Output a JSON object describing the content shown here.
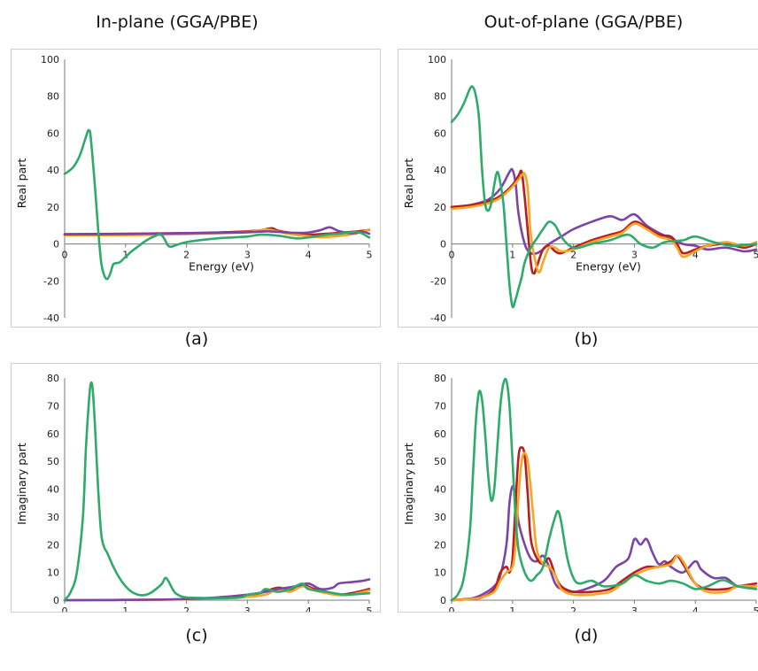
{
  "column_titles": {
    "left": "In-plane (GGA/PBE)",
    "right": "Out-of-plane (GGA/PBE)"
  },
  "colors": {
    "green": "#2eab6b",
    "purple": "#7b44a8",
    "red": "#b81d22",
    "orange": "#f5a623"
  },
  "chart_data": [
    {
      "id": "a",
      "caption": "(a)",
      "type": "line",
      "xlabel": "Energy (eV)",
      "ylabel": "Real part",
      "xlim": [
        0,
        5
      ],
      "ylim": [
        -40,
        100
      ],
      "xticks": [
        0,
        1,
        2,
        3,
        4,
        5
      ],
      "yticks": [
        -40,
        -20,
        0,
        20,
        40,
        60,
        80,
        100
      ],
      "grid": false,
      "series": [
        {
          "color": "#b81d22",
          "x": [
            0,
            0.5,
            1,
            1.5,
            2,
            2.5,
            3,
            3.2,
            3.4,
            3.5,
            3.7,
            4,
            4.3,
            4.5,
            4.8,
            5
          ],
          "y": [
            5.3,
            5.4,
            5.5,
            5.7,
            5.9,
            6.2,
            6.8,
            7.3,
            8.5,
            7.2,
            6,
            5,
            5.5,
            6,
            6.8,
            7.6
          ]
        },
        {
          "color": "#f5a623",
          "x": [
            0,
            0.5,
            1,
            1.5,
            2,
            2.5,
            3,
            3.3,
            3.5,
            3.7,
            4,
            4.2,
            4.5,
            4.8,
            5
          ],
          "y": [
            4.6,
            4.7,
            4.8,
            5,
            5.3,
            5.8,
            6.4,
            7.8,
            6.8,
            5.3,
            4.2,
            3.7,
            4.3,
            5.8,
            7.8
          ]
        },
        {
          "color": "#7b44a8",
          "x": [
            0,
            0.5,
            1,
            1.5,
            2,
            2.5,
            3,
            3.3,
            3.5,
            3.8,
            4,
            4.2,
            4.35,
            4.5,
            4.7,
            4.9,
            5
          ],
          "y": [
            5.2,
            5.3,
            5.4,
            5.6,
            5.8,
            6,
            6.3,
            6.8,
            6.5,
            6,
            6.2,
            7.5,
            9,
            7,
            5.8,
            6.5,
            5.5
          ]
        },
        {
          "color": "#2eab6b",
          "x": [
            0,
            0.05,
            0.15,
            0.25,
            0.33,
            0.38,
            0.4,
            0.42,
            0.45,
            0.5,
            0.55,
            0.6,
            0.65,
            0.7,
            0.75,
            0.8,
            0.9,
            1,
            1.1,
            1.2,
            1.3,
            1.4,
            1.5,
            1.55,
            1.6,
            1.65,
            1.7,
            1.75,
            1.8,
            2,
            2.5,
            3,
            3.2,
            3.5,
            3.8,
            4,
            4.3,
            4.5,
            4.8,
            5
          ],
          "y": [
            38,
            39,
            42,
            48,
            56,
            61,
            61.5,
            60,
            50,
            30,
            8,
            -10,
            -17,
            -19,
            -16,
            -11,
            -10,
            -7,
            -4,
            -1.5,
            1,
            3,
            4.5,
            5.2,
            4.5,
            2,
            -1,
            -1.5,
            -1,
            1,
            3,
            4,
            5,
            4.5,
            3,
            3.5,
            5,
            5.5,
            6.5,
            3.5
          ]
        }
      ]
    },
    {
      "id": "b",
      "caption": "(b)",
      "type": "line",
      "xlabel": "Energy (eV)",
      "ylabel": "Real part",
      "xlim": [
        0,
        5
      ],
      "ylim": [
        -40,
        100
      ],
      "xticks": [
        0,
        1,
        2,
        3,
        4,
        5
      ],
      "yticks": [
        -40,
        -20,
        0,
        20,
        40,
        60,
        80,
        100
      ],
      "grid": false,
      "series": [
        {
          "color": "#7b44a8",
          "x": [
            0,
            0.3,
            0.6,
            0.8,
            0.95,
            1,
            1.05,
            1.1,
            1.2,
            1.3,
            1.4,
            1.5,
            1.6,
            1.8,
            2,
            2.3,
            2.6,
            2.8,
            3,
            3.2,
            3.4,
            3.6,
            3.8,
            4,
            4.2,
            4.5,
            4.8,
            5
          ],
          "y": [
            20,
            21,
            24,
            30,
            39,
            40,
            33,
            16,
            0,
            -5,
            -5,
            -3,
            0,
            4,
            8,
            12,
            15,
            13,
            16,
            10,
            6,
            3,
            0,
            -1,
            -3,
            -2,
            -4,
            -3
          ]
        },
        {
          "color": "#b81d22",
          "x": [
            0,
            0.3,
            0.6,
            0.8,
            1,
            1.1,
            1.15,
            1.2,
            1.3,
            1.35,
            1.4,
            1.5,
            1.6,
            1.7,
            1.8,
            2,
            2.3,
            2.6,
            2.8,
            3,
            3.2,
            3.4,
            3.6,
            3.7,
            3.8,
            4,
            4.2,
            4.5,
            4.8,
            5
          ],
          "y": [
            20,
            21,
            23,
            26,
            32,
            37,
            39,
            25,
            -10,
            -16,
            -12,
            -3,
            -1,
            -4,
            -5,
            -2,
            2,
            5,
            7,
            12,
            9,
            5,
            4,
            0,
            -5,
            -3,
            -1,
            0,
            -2,
            0
          ]
        },
        {
          "color": "#f5a623",
          "x": [
            0,
            0.3,
            0.6,
            0.8,
            1,
            1.15,
            1.2,
            1.25,
            1.3,
            1.4,
            1.45,
            1.5,
            1.6,
            1.7,
            1.8,
            2,
            2.3,
            2.6,
            2.8,
            3,
            3.2,
            3.4,
            3.6,
            3.7,
            3.8,
            4,
            4.2,
            4.5,
            4.8,
            5
          ],
          "y": [
            19,
            20,
            22,
            25,
            31,
            37,
            38,
            30,
            5,
            -13,
            -15,
            -10,
            -2,
            -2,
            -4,
            -3,
            1,
            4,
            6,
            11,
            8,
            4,
            2,
            -2,
            -7,
            -4,
            -1,
            1,
            -1,
            1
          ]
        },
        {
          "color": "#2eab6b",
          "x": [
            0,
            0.1,
            0.2,
            0.3,
            0.35,
            0.4,
            0.45,
            0.5,
            0.55,
            0.6,
            0.65,
            0.7,
            0.75,
            0.8,
            0.85,
            0.9,
            0.95,
            1,
            1.05,
            1.1,
            1.15,
            1.2,
            1.3,
            1.4,
            1.5,
            1.6,
            1.7,
            1.8,
            1.9,
            2,
            2.1,
            2.3,
            2.6,
            2.9,
            3.1,
            3.3,
            3.5,
            3.8,
            4,
            4.3,
            4.6,
            5
          ],
          "y": [
            66,
            70,
            76,
            84,
            85,
            80,
            68,
            40,
            22,
            18,
            22,
            32,
            39,
            33,
            22,
            0,
            -22,
            -34,
            -30,
            -24,
            -18,
            -10,
            -2,
            3,
            8,
            12,
            10,
            4,
            0,
            -2,
            -2,
            0,
            2,
            5,
            0,
            -2,
            1,
            2,
            4,
            1,
            -1,
            0
          ]
        }
      ]
    },
    {
      "id": "c",
      "caption": "(c)",
      "type": "line",
      "xlabel": "Energy (eV)",
      "ylabel": "Imaginary part",
      "xlim": [
        0,
        5
      ],
      "ylim": [
        0,
        80
      ],
      "xticks": [
        0,
        1,
        2,
        3,
        4,
        5
      ],
      "yticks": [
        0,
        10,
        20,
        30,
        40,
        50,
        60,
        70,
        80
      ],
      "grid": false,
      "series": [
        {
          "color": "#b81d22",
          "x": [
            0,
            1,
            2,
            2.5,
            3,
            3.2,
            3.5,
            3.7,
            3.9,
            4.1,
            4.3,
            4.5,
            4.7,
            5
          ],
          "y": [
            0,
            0.1,
            0.3,
            0.8,
            1.5,
            2.5,
            4.5,
            3.5,
            5.5,
            4,
            3,
            2,
            2.5,
            4
          ]
        },
        {
          "color": "#f5a623",
          "x": [
            0,
            1,
            2,
            2.5,
            3,
            3.3,
            3.5,
            3.7,
            3.9,
            4.1,
            4.3,
            4.5,
            4.7,
            5
          ],
          "y": [
            0,
            0.1,
            0.3,
            0.7,
            1.2,
            2,
            4,
            3,
            5,
            3.5,
            2.5,
            1.8,
            2,
            3.5
          ]
        },
        {
          "color": "#7b44a8",
          "x": [
            0,
            1,
            2,
            2.5,
            3,
            3.3,
            3.5,
            3.8,
            4,
            4.2,
            4.4,
            4.5,
            4.7,
            4.9,
            5
          ],
          "y": [
            0,
            0.1,
            0.4,
            1,
            2,
            3,
            4,
            5,
            6,
            4,
            4.5,
            6,
            6.5,
            7,
            7.5
          ]
        },
        {
          "color": "#2eab6b",
          "x": [
            0,
            0.1,
            0.2,
            0.3,
            0.35,
            0.4,
            0.43,
            0.46,
            0.5,
            0.55,
            0.6,
            0.65,
            0.7,
            0.8,
            0.9,
            1,
            1.1,
            1.2,
            1.3,
            1.4,
            1.5,
            1.6,
            1.65,
            1.7,
            1.8,
            1.9,
            2,
            2.3,
            2.6,
            2.9,
            3,
            3.2,
            3.3,
            3.5,
            3.7,
            3.9,
            4,
            4.3,
            4.6,
            5
          ],
          "y": [
            0,
            3,
            10,
            30,
            55,
            72,
            78,
            76,
            62,
            40,
            24,
            19,
            17,
            12,
            8,
            5,
            3,
            2,
            1.8,
            2.5,
            4,
            6,
            8,
            7,
            3,
            1.5,
            1,
            0.8,
            0.7,
            1,
            2,
            2.5,
            4,
            3,
            4,
            6,
            4,
            3,
            2,
            2.5
          ]
        }
      ]
    },
    {
      "id": "d",
      "caption": "(d)",
      "type": "line",
      "xlabel": "Energy (eV)",
      "ylabel": "Imaginary part",
      "xlim": [
        0,
        5
      ],
      "ylim": [
        0,
        80
      ],
      "xticks": [
        0,
        1,
        2,
        3,
        4,
        5
      ],
      "yticks": [
        0,
        10,
        20,
        30,
        40,
        50,
        60,
        70,
        80
      ],
      "grid": false,
      "series": [
        {
          "color": "#7b44a8",
          "x": [
            0,
            0.3,
            0.5,
            0.7,
            0.8,
            0.9,
            0.95,
            1,
            1.05,
            1.1,
            1.2,
            1.3,
            1.4,
            1.5,
            1.6,
            1.7,
            1.8,
            2,
            2.2,
            2.5,
            2.7,
            2.9,
            3,
            3.1,
            3.2,
            3.3,
            3.4,
            3.5,
            3.6,
            3.8,
            4,
            4.1,
            4.3,
            4.5,
            4.7,
            5
          ],
          "y": [
            0,
            0.5,
            2,
            5,
            9,
            20,
            35,
            41,
            37,
            28,
            20,
            15,
            14,
            16,
            12,
            6,
            4,
            3,
            4,
            7,
            12,
            15,
            22,
            20,
            22,
            17,
            13,
            14,
            12,
            10,
            14,
            11,
            8,
            8,
            5,
            5
          ]
        },
        {
          "color": "#b81d22",
          "x": [
            0,
            0.3,
            0.5,
            0.7,
            0.8,
            0.9,
            0.95,
            1,
            1.05,
            1.1,
            1.15,
            1.2,
            1.25,
            1.3,
            1.4,
            1.5,
            1.6,
            1.7,
            1.8,
            2,
            2.3,
            2.6,
            2.8,
            3,
            3.2,
            3.4,
            3.6,
            3.7,
            3.8,
            4,
            4.2,
            4.5,
            4.7,
            5
          ],
          "y": [
            0,
            0.5,
            1,
            4,
            10,
            12,
            10,
            15,
            35,
            52,
            55,
            52,
            38,
            22,
            15,
            13,
            15,
            9,
            5,
            3,
            3,
            4,
            7,
            10,
            12,
            12,
            14,
            16,
            13,
            6,
            4,
            4,
            5,
            6
          ]
        },
        {
          "color": "#f5a623",
          "x": [
            0,
            0.3,
            0.5,
            0.7,
            0.8,
            0.9,
            1,
            1.05,
            1.1,
            1.15,
            1.2,
            1.25,
            1.3,
            1.35,
            1.4,
            1.5,
            1.6,
            1.7,
            1.8,
            2,
            2.3,
            2.6,
            2.8,
            3,
            3.2,
            3.4,
            3.6,
            3.7,
            3.8,
            4,
            4.2,
            4.5,
            4.7,
            5
          ],
          "y": [
            0,
            0.4,
            1,
            3,
            7,
            10,
            12,
            20,
            38,
            50,
            53,
            50,
            40,
            28,
            18,
            13,
            12,
            9,
            4,
            2,
            2,
            3,
            6,
            9,
            11,
            12,
            13,
            16,
            14,
            6,
            3,
            3,
            5,
            5
          ]
        },
        {
          "color": "#2eab6b",
          "x": [
            0,
            0.1,
            0.2,
            0.3,
            0.35,
            0.4,
            0.45,
            0.5,
            0.55,
            0.6,
            0.65,
            0.7,
            0.75,
            0.8,
            0.85,
            0.9,
            0.95,
            1,
            1.05,
            1.1,
            1.2,
            1.3,
            1.4,
            1.5,
            1.6,
            1.7,
            1.75,
            1.8,
            1.9,
            2,
            2.1,
            2.3,
            2.5,
            2.8,
            3,
            3.2,
            3.4,
            3.6,
            3.8,
            4,
            4.2,
            4.4,
            4.5,
            4.7,
            5
          ],
          "y": [
            0,
            2,
            8,
            25,
            45,
            65,
            75,
            72,
            60,
            45,
            36,
            40,
            55,
            70,
            78,
            79,
            70,
            50,
            30,
            18,
            10,
            7,
            9,
            12,
            22,
            30,
            32,
            28,
            15,
            8,
            6,
            7,
            5,
            6,
            9,
            7,
            6,
            7,
            6,
            4,
            5,
            7,
            7,
            5,
            4
          ]
        }
      ]
    }
  ]
}
